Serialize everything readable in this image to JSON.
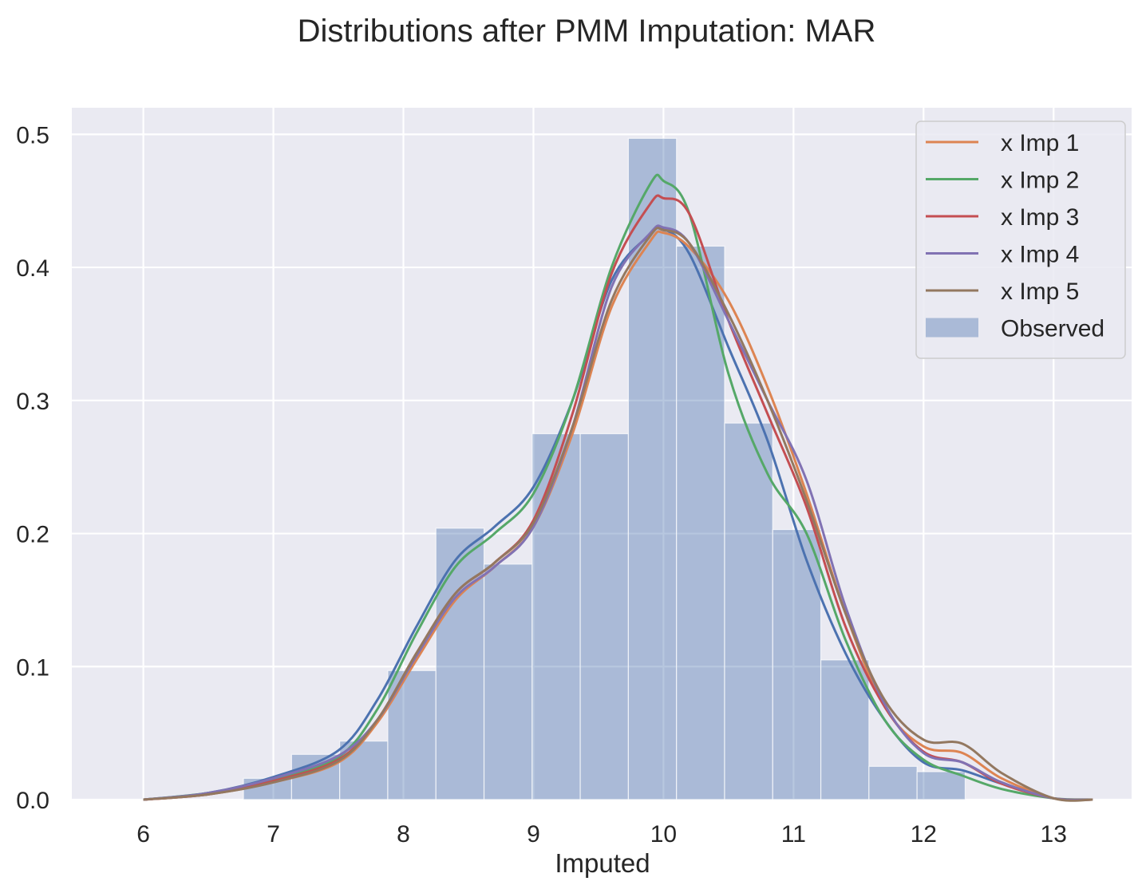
{
  "chart_data": {
    "type": "histogram+kde",
    "title": "Distributions after PMM Imputation: MAR",
    "xlabel": "Imputed",
    "ylabel": "",
    "xlim": [
      5.45,
      13.6
    ],
    "ylim": [
      0,
      0.52
    ],
    "xticks": [
      6,
      7,
      8,
      9,
      10,
      11,
      12,
      13
    ],
    "yticks": [
      0.0,
      0.1,
      0.2,
      0.3,
      0.4,
      0.5
    ],
    "ytick_labels": [
      "0.0",
      "0.1",
      "0.2",
      "0.3",
      "0.4",
      "0.5"
    ],
    "grid": true,
    "background": "#eaeaf2",
    "legend_position": "top-right",
    "histogram": {
      "name": "Observed",
      "color": "#4c72b0",
      "bins": [
        {
          "x0": 6.77,
          "x1": 7.14,
          "density": 0.016
        },
        {
          "x0": 7.14,
          "x1": 7.51,
          "density": 0.034
        },
        {
          "x0": 7.51,
          "x1": 7.88,
          "density": 0.044
        },
        {
          "x0": 7.88,
          "x1": 8.25,
          "density": 0.097
        },
        {
          "x0": 8.25,
          "x1": 8.62,
          "density": 0.204
        },
        {
          "x0": 8.62,
          "x1": 8.99,
          "density": 0.177
        },
        {
          "x0": 8.99,
          "x1": 9.36,
          "density": 0.275
        },
        {
          "x0": 9.36,
          "x1": 9.73,
          "density": 0.275
        },
        {
          "x0": 9.73,
          "x1": 10.1,
          "density": 0.497
        },
        {
          "x0": 10.1,
          "x1": 10.47,
          "density": 0.416
        },
        {
          "x0": 10.47,
          "x1": 10.84,
          "density": 0.283
        },
        {
          "x0": 10.84,
          "x1": 11.21,
          "density": 0.203
        },
        {
          "x0": 11.21,
          "x1": 11.58,
          "density": 0.105
        },
        {
          "x0": 11.58,
          "x1": 11.95,
          "density": 0.025
        },
        {
          "x0": 11.95,
          "x1": 12.32,
          "density": 0.021
        }
      ]
    },
    "baseline_curve": {
      "color": "#4c72b0",
      "x": [
        6.0,
        6.5,
        7.0,
        7.5,
        7.8,
        8.1,
        8.4,
        8.7,
        9.0,
        9.3,
        9.6,
        9.9,
        10.0,
        10.2,
        10.5,
        10.8,
        11.1,
        11.4,
        11.7,
        12.0,
        12.3,
        12.6,
        13.0,
        13.3
      ],
      "y": [
        0.0,
        0.005,
        0.017,
        0.037,
        0.075,
        0.13,
        0.18,
        0.205,
        0.235,
        0.3,
        0.39,
        0.425,
        0.429,
        0.41,
        0.34,
        0.27,
        0.18,
        0.11,
        0.06,
        0.028,
        0.022,
        0.012,
        0.001,
        0.0
      ]
    },
    "series": [
      {
        "name": "x Imp 1",
        "color": "#dd8452",
        "x": [
          6.0,
          6.5,
          7.0,
          7.5,
          7.8,
          8.1,
          8.4,
          8.7,
          9.0,
          9.3,
          9.6,
          9.9,
          10.0,
          10.2,
          10.5,
          10.8,
          11.1,
          11.4,
          11.7,
          12.0,
          12.3,
          12.6,
          13.0,
          13.3
        ],
        "y": [
          0.0,
          0.004,
          0.013,
          0.028,
          0.058,
          0.105,
          0.15,
          0.175,
          0.205,
          0.275,
          0.37,
          0.42,
          0.426,
          0.415,
          0.375,
          0.31,
          0.23,
          0.14,
          0.07,
          0.04,
          0.035,
          0.016,
          0.001,
          0.0
        ]
      },
      {
        "name": "x Imp 2",
        "color": "#55a868",
        "x": [
          6.0,
          6.5,
          7.0,
          7.5,
          7.8,
          8.1,
          8.4,
          8.7,
          9.0,
          9.3,
          9.6,
          9.9,
          10.0,
          10.2,
          10.5,
          10.8,
          11.1,
          11.4,
          11.7,
          12.0,
          12.3,
          12.6,
          13.0,
          13.3
        ],
        "y": [
          0.0,
          0.005,
          0.015,
          0.032,
          0.068,
          0.125,
          0.175,
          0.2,
          0.23,
          0.3,
          0.4,
          0.463,
          0.465,
          0.44,
          0.32,
          0.245,
          0.2,
          0.12,
          0.06,
          0.03,
          0.018,
          0.008,
          0.001,
          0.0
        ]
      },
      {
        "name": "x Imp 3",
        "color": "#c44e52",
        "x": [
          6.0,
          6.5,
          7.0,
          7.5,
          7.8,
          8.1,
          8.4,
          8.7,
          9.0,
          9.3,
          9.6,
          9.9,
          10.0,
          10.2,
          10.5,
          10.8,
          11.1,
          11.4,
          11.7,
          12.0,
          12.3,
          12.6,
          13.0,
          13.3
        ],
        "y": [
          0.0,
          0.004,
          0.014,
          0.03,
          0.06,
          0.11,
          0.155,
          0.178,
          0.21,
          0.29,
          0.395,
          0.448,
          0.452,
          0.44,
          0.36,
          0.29,
          0.22,
          0.13,
          0.07,
          0.036,
          0.028,
          0.012,
          0.001,
          0.0
        ]
      },
      {
        "name": "x Imp 4",
        "color": "#8172b3",
        "x": [
          6.0,
          6.5,
          7.0,
          7.5,
          7.8,
          8.1,
          8.4,
          8.7,
          9.0,
          9.3,
          9.6,
          9.9,
          10.0,
          10.2,
          10.5,
          10.8,
          11.1,
          11.4,
          11.7,
          12.0,
          12.3,
          12.6,
          13.0,
          13.3
        ],
        "y": [
          0.0,
          0.005,
          0.016,
          0.033,
          0.06,
          0.108,
          0.152,
          0.175,
          0.205,
          0.28,
          0.385,
          0.426,
          0.43,
          0.418,
          0.36,
          0.3,
          0.24,
          0.145,
          0.072,
          0.035,
          0.028,
          0.013,
          0.001,
          0.0
        ]
      },
      {
        "name": "x Imp 5",
        "color": "#937860",
        "x": [
          6.0,
          6.5,
          7.0,
          7.5,
          7.8,
          8.1,
          8.4,
          8.7,
          9.0,
          9.3,
          9.6,
          9.9,
          10.0,
          10.2,
          10.5,
          10.8,
          11.1,
          11.4,
          11.7,
          12.0,
          12.3,
          12.6,
          13.0,
          13.3
        ],
        "y": [
          0.0,
          0.004,
          0.013,
          0.029,
          0.06,
          0.11,
          0.155,
          0.178,
          0.208,
          0.28,
          0.375,
          0.424,
          0.428,
          0.418,
          0.365,
          0.3,
          0.225,
          0.14,
          0.075,
          0.045,
          0.042,
          0.02,
          0.001,
          0.0
        ]
      }
    ]
  }
}
